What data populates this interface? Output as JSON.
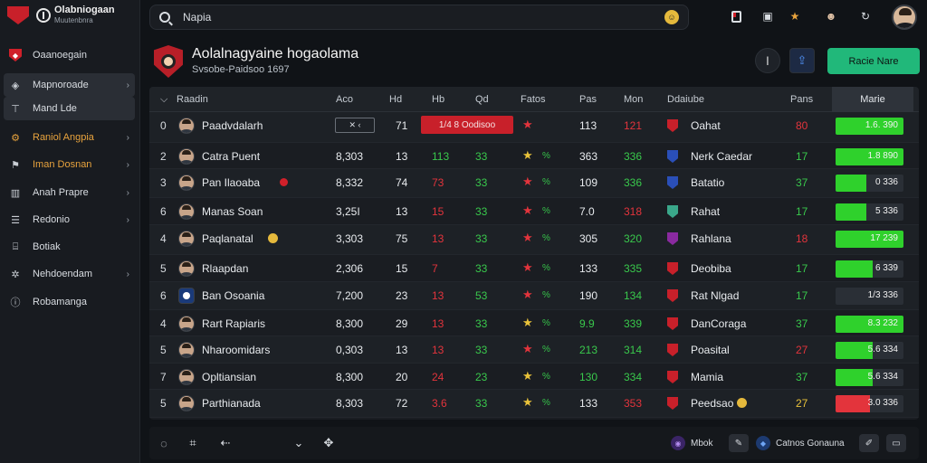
{
  "brand": {
    "title": "Olabniogaan",
    "subtitle": "Muutenbnra"
  },
  "sidebar": {
    "items": [
      {
        "label": "Oaanoegain",
        "icon": "shield-icon",
        "chevron": false
      },
      {
        "label": "Mapnoroade",
        "icon": "map-icon",
        "chevron": true
      },
      {
        "label": "Mand Lde",
        "icon": "pin-icon",
        "chevron": false
      },
      {
        "label": "Raniol Angpia",
        "icon": "settings-icon",
        "chevron": true
      },
      {
        "label": "Iman Dosnan",
        "icon": "flag-icon",
        "chevron": true
      },
      {
        "label": "Anah Prapre",
        "icon": "chart-icon",
        "chevron": true
      },
      {
        "label": "Redonio",
        "icon": "list-icon",
        "chevron": true
      },
      {
        "label": "Botiak",
        "icon": "book-icon",
        "chevron": false
      },
      {
        "label": "Nehdoendam",
        "icon": "star-icon",
        "chevron": true
      },
      {
        "label": "Robamanga",
        "icon": "info-icon",
        "chevron": false
      }
    ]
  },
  "search": {
    "value": "Napia",
    "placeholder": "Napia"
  },
  "header": {
    "title": "Aolalnagyaine hogaolama",
    "subtitle": "Svsobe-Paidsoo 1697",
    "action_label": "Racie Nare"
  },
  "table": {
    "columns": [
      "Raadin",
      "Aco",
      "Hd",
      "Hb",
      "Qd",
      "Fatos",
      "Pas",
      "Mon",
      "Ddaiube",
      "Pans",
      "Marie"
    ],
    "rows": [
      {
        "rank": "0",
        "name": "Paadvdalarh",
        "value": "",
        "c2": "71",
        "c3": "",
        "c4": "",
        "pct": "",
        "c5": "113",
        "c6": "121",
        "team": "Oahat",
        "c7": "80",
        "bar_label": "1.6.  390",
        "bar_pct": 100,
        "bar_color": "#2fd12c",
        "c3_color": "green",
        "c4_color": "green",
        "c6_color": "red",
        "c7_color": "red",
        "flag_color": "#c8202a",
        "star_color": "",
        "pill": "1/4 8 Oodisoo",
        "select": "✕  ‹"
      },
      {
        "rank": "2",
        "name": "Catra Puent",
        "value": "8,303",
        "c2": "13",
        "c3": "113",
        "c4": "33",
        "pct": "%",
        "c5": "363",
        "c6": "336",
        "team": "Nerk Caedar",
        "c7": "17",
        "bar_label": "1.8  890",
        "bar_pct": 100,
        "bar_color": "#2fd12c",
        "c3_color": "green",
        "c4_color": "green",
        "c6_color": "green",
        "c7_color": "green",
        "flag_color": "#2a4fb8",
        "star_color": "yellow"
      },
      {
        "rank": "3",
        "name": "Pan Ilaoaba",
        "value": "8,332",
        "c2": "74",
        "c3": "73",
        "c4": "33",
        "pct": "%",
        "c5": "109",
        "c6": "336",
        "team": "Batatio",
        "c7": "37",
        "bar_label": "0  336",
        "bar_pct": 45,
        "bar_color": "#2fd12c",
        "c3_color": "red",
        "c4_color": "green",
        "c6_color": "green",
        "c7_color": "green",
        "flag_color": "#2a4fb8",
        "star_color": "red",
        "dot": true
      },
      {
        "rank": "6",
        "name": "Manas Soan",
        "value": "3,25I",
        "c2": "13",
        "c3": "15",
        "c4": "33",
        "pct": "%",
        "c5": "7.0",
        "c6": "318",
        "team": "Rahat",
        "c7": "17",
        "bar_label": "5  336",
        "bar_pct": 45,
        "bar_color": "#2fd12c",
        "c3_color": "red",
        "c4_color": "green",
        "c6_color": "red",
        "c7_color": "green",
        "flag_color": "#3aa78a",
        "star_color": "red"
      },
      {
        "rank": "4",
        "name": "Paqlanatal",
        "value": "3,303",
        "c2": "75",
        "c3": "13",
        "c4": "33",
        "pct": "%",
        "c5": "305",
        "c6": "320",
        "team": "Rahlana",
        "c7": "18",
        "bar_label": "17  239",
        "bar_pct": 100,
        "bar_color": "#2fd12c",
        "c3_color": "red",
        "c4_color": "green",
        "c6_color": "green",
        "c7_color": "red",
        "flag_color": "#8a2aa0",
        "star_color": "red",
        "emoji": true
      },
      {
        "rank": "5",
        "name": "Rlaapdan",
        "value": "2,306",
        "c2": "15",
        "c3": "7",
        "c4": "33",
        "pct": "%",
        "c5": "133",
        "c6": "335",
        "team": "Deobiba",
        "c7": "17",
        "bar_label": "6  339",
        "bar_pct": 55,
        "bar_color": "#2fd12c",
        "c3_color": "red",
        "c4_color": "green",
        "c6_color": "green",
        "c7_color": "green",
        "flag_color": "#c8202a",
        "star_color": "red"
      },
      {
        "rank": "6",
        "name": "Ban Osoania",
        "value": "7,200",
        "c2": "23",
        "c3": "13",
        "c4": "53",
        "pct": "%",
        "c5": "190",
        "c6": "134",
        "team": "Rat Nlgad",
        "c7": "17",
        "bar_label": "1/3  336",
        "bar_pct": 0,
        "bar_color": "#2fd12c",
        "c3_color": "red",
        "c4_color": "green",
        "c6_color": "green",
        "c7_color": "green",
        "flag_color": "#c8202a",
        "star_color": "red",
        "badge": true
      },
      {
        "rank": "4",
        "name": "Rart Rapiaris",
        "value": "8,300",
        "c2": "29",
        "c3": "13",
        "c4": "33",
        "pct": "%",
        "c5": "9.9",
        "c6": "339",
        "team": "DanCoraga",
        "c7": "37",
        "bar_label": "8.3  232",
        "bar_pct": 100,
        "bar_color": "#2fd12c",
        "c3_color": "red",
        "c4_color": "green",
        "c6_color": "green",
        "c7_color": "green",
        "flag_color": "#c8202a",
        "star_color": "yellow",
        "c5_color": "green"
      },
      {
        "rank": "5",
        "name": "Nharoomidars",
        "value": "0,303",
        "c2": "13",
        "c3": "13",
        "c4": "33",
        "pct": "%",
        "c5": "213",
        "c6": "314",
        "team": "Poasital",
        "c7": "27",
        "bar_label": "5.6  334",
        "bar_pct": 55,
        "bar_color": "#2fd12c",
        "c3_color": "red",
        "c4_color": "green",
        "c6_color": "green",
        "c7_color": "red",
        "flag_color": "#c8202a",
        "star_color": "red",
        "c5_color": "green"
      },
      {
        "rank": "7",
        "name": "Opltiansian",
        "value": "8,300",
        "c2": "20",
        "c3": "24",
        "c4": "23",
        "pct": "%",
        "c5": "130",
        "c6": "334",
        "team": "Mamia",
        "c7": "37",
        "bar_label": "5.6  334",
        "bar_pct": 55,
        "bar_color": "#2fd12c",
        "c3_color": "red",
        "c4_color": "green",
        "c6_color": "green",
        "c7_color": "green",
        "flag_color": "#c8202a",
        "star_color": "yellow",
        "c5_color": "green"
      },
      {
        "rank": "5",
        "name": "Parthianada",
        "value": "8,303",
        "c2": "72",
        "c3": "3.6",
        "c4": "33",
        "pct": "%",
        "c5": "133",
        "c6": "353",
        "team": "Peedsao",
        "c7": "27",
        "bar_label": "3.0  336",
        "bar_pct": 50,
        "bar_color": "#e3343c",
        "c3_color": "red",
        "c4_color": "green",
        "c6_color": "red",
        "c7_color": "yellow",
        "flag_color": "#c8202a",
        "star_color": "yellow",
        "emoji_team": true
      }
    ]
  },
  "bottombar": {
    "pill1_label": "Mbok",
    "pill2_label": "Catnos Gonauna"
  },
  "colors": {
    "accent": "#21b87a",
    "danger": "#c8202a",
    "positive": "#39c94c",
    "warning": "#e9c23a"
  }
}
